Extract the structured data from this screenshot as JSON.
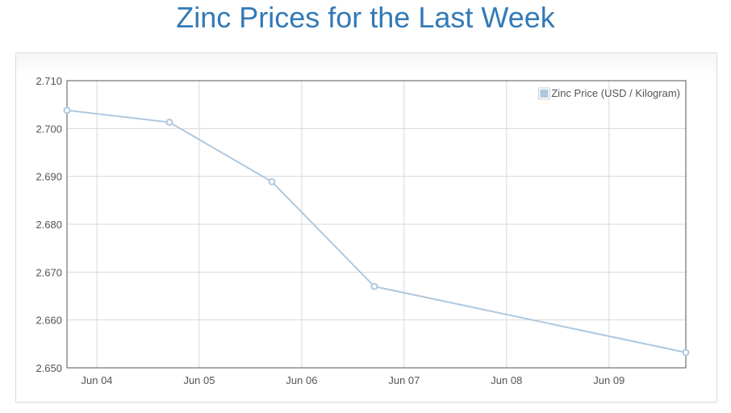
{
  "page": {
    "title": "Zinc Prices for the Last Week"
  },
  "colors": {
    "title": "#337ab7",
    "series": "#afc8de",
    "grid": "#d9d9d9",
    "frame": "#545454",
    "text": "#545454"
  },
  "chart_data": {
    "type": "line",
    "title": "Zinc Prices for the Last Week",
    "xlabel": "",
    "ylabel": "",
    "grid": true,
    "legend_position": "top-right",
    "x_ticks": [
      "Jun 04",
      "Jun 05",
      "Jun 06",
      "Jun 07",
      "Jun 08",
      "Jun 09"
    ],
    "y_ticks": [
      "2.710",
      "2.700",
      "2.690",
      "2.680",
      "2.670",
      "2.660",
      "2.650"
    ],
    "ylim": [
      2.65,
      2.71
    ],
    "xlim": [
      "Jun 03 17:00",
      "Jun 09 18:00"
    ],
    "series": [
      {
        "name": "Zinc Price (USD / Kilogram)",
        "color": "#afc8de",
        "points": [
          {
            "x": "Jun 03 17:00",
            "y": 2.7038
          },
          {
            "x": "Jun 04 17:00",
            "y": 2.7013
          },
          {
            "x": "Jun 05 17:00",
            "y": 2.6889
          },
          {
            "x": "Jun 06 17:00",
            "y": 2.667
          },
          {
            "x": "Jun 09 18:00",
            "y": 2.6532
          }
        ]
      }
    ]
  }
}
